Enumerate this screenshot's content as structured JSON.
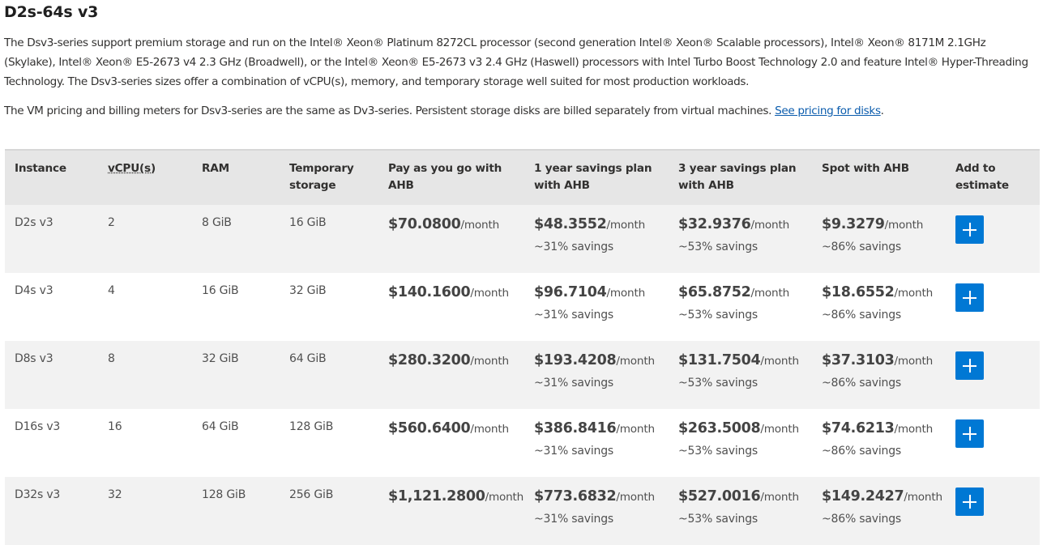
{
  "section": {
    "title": "D2s-64s v3"
  },
  "intro": {
    "paragraph1": "The Dsv3-series support premium storage and run on the Intel® Xeon® Platinum 8272CL processor (second generation Intel® Xeon® Scalable processors), Intel® Xeon® 8171M 2.1GHz (Skylake), Intel® Xeon® E5-2673 v4 2.3 GHz (Broadwell), or the Intel® Xeon® E5-2673 v3 2.4 GHz (Haswell) processors with Intel Turbo Boost Technology 2.0 and feature Intel® Hyper-Threading Technology. The Dsv3-series sizes offer a combination of vCPU(s), memory, and temporary storage well suited for most production workloads.",
    "paragraph2": "The VM pricing and billing meters for Dsv3-series are the same as Dv3-series. Persistent storage disks are billed separately from virtual machines. ",
    "link_text": "See pricing for disks",
    "after_link": "."
  },
  "table": {
    "headers": {
      "instance": "Instance",
      "vcpu": "vCPU(s)",
      "ram": "RAM",
      "storage": "Temporary storage",
      "payg": "Pay as you go with AHB",
      "one_year": "1 year savings plan with AHB",
      "three_year": "3 year savings plan with AHB",
      "spot": "Spot with AHB",
      "add": "Add to estimate"
    },
    "unit": "/month",
    "rows": [
      {
        "instance": "D2s v3",
        "vcpu": "2",
        "ram": "8 GiB",
        "storage": "16 GiB",
        "payg": "$70.0800",
        "one_year": "$48.3552",
        "one_year_savings": "~31% savings",
        "three_year": "$32.9376",
        "three_year_savings": "~53% savings",
        "spot": "$9.3279",
        "spot_savings": "~86% savings"
      },
      {
        "instance": "D4s v3",
        "vcpu": "4",
        "ram": "16 GiB",
        "storage": "32 GiB",
        "payg": "$140.1600",
        "one_year": "$96.7104",
        "one_year_savings": "~31% savings",
        "three_year": "$65.8752",
        "three_year_savings": "~53% savings",
        "spot": "$18.6552",
        "spot_savings": "~86% savings"
      },
      {
        "instance": "D8s v3",
        "vcpu": "8",
        "ram": "32 GiB",
        "storage": "64 GiB",
        "payg": "$280.3200",
        "one_year": "$193.4208",
        "one_year_savings": "~31% savings",
        "three_year": "$131.7504",
        "three_year_savings": "~53% savings",
        "spot": "$37.3103",
        "spot_savings": "~86% savings"
      },
      {
        "instance": "D16s v3",
        "vcpu": "16",
        "ram": "64 GiB",
        "storage": "128 GiB",
        "payg": "$560.6400",
        "one_year": "$386.8416",
        "one_year_savings": "~31% savings",
        "three_year": "$263.5008",
        "three_year_savings": "~53% savings",
        "spot": "$74.6213",
        "spot_savings": "~86% savings"
      },
      {
        "instance": "D32s v3",
        "vcpu": "32",
        "ram": "128 GiB",
        "storage": "256 GiB",
        "payg": "$1,121.2800",
        "one_year": "$773.6832",
        "one_year_savings": "~31% savings",
        "three_year": "$527.0016",
        "three_year_savings": "~53% savings",
        "spot": "$149.2427",
        "spot_savings": "~86% savings"
      }
    ]
  },
  "icons": {
    "add": "plus-icon"
  },
  "colors": {
    "accent": "#0078d4",
    "link": "#0b5cad",
    "header_bg": "#e6e6e6",
    "stripe_bg": "#f2f2f2"
  }
}
